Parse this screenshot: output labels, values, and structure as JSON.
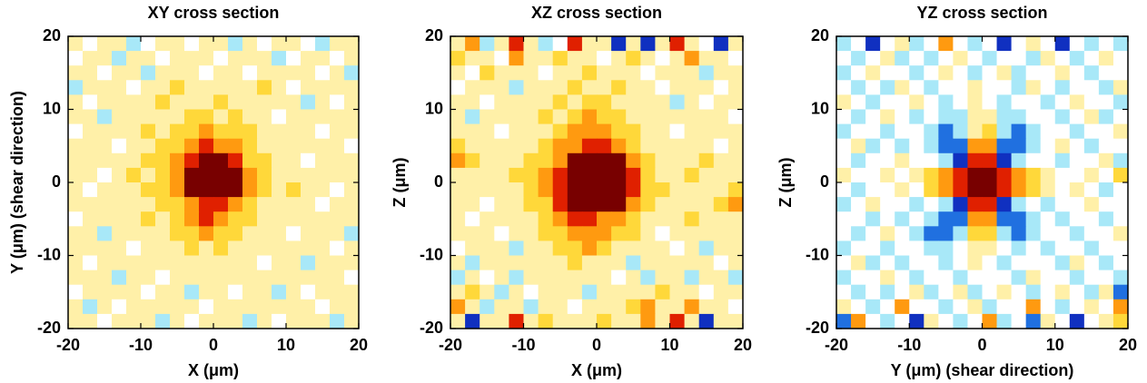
{
  "chart_data": [
    {
      "type": "heatmap",
      "title": "XY cross section",
      "xlabel": "X (μm)",
      "ylabel": "Y (μm) (shear direction)",
      "xlim": [
        -20,
        20
      ],
      "ylim": [
        -20,
        20
      ],
      "xticks": [
        -20,
        -10,
        0,
        10,
        20
      ],
      "yticks": [
        -20,
        -10,
        0,
        10,
        20
      ],
      "zlim": [
        -3,
        5
      ],
      "colormap": [
        "#1030c0",
        "#2070e0",
        "#a8e8f8",
        "#ffffff",
        "#fff0a8",
        "#ffd83a",
        "#ff9a10",
        "#e02000",
        "#780000"
      ],
      "z": [
        [
          1,
          0,
          1,
          1,
          -1,
          0,
          1,
          1,
          0,
          1,
          1,
          -1,
          1,
          0,
          1,
          1,
          0,
          -1,
          1,
          1
        ],
        [
          0,
          1,
          1,
          -1,
          1,
          1,
          0,
          1,
          1,
          1,
          0,
          1,
          1,
          1,
          -1,
          0,
          1,
          1,
          0,
          1
        ],
        [
          1,
          1,
          0,
          1,
          1,
          -1,
          1,
          1,
          1,
          0,
          1,
          1,
          0,
          1,
          1,
          1,
          1,
          0,
          1,
          -1
        ],
        [
          -1,
          1,
          1,
          1,
          0,
          1,
          1,
          2,
          1,
          1,
          1,
          1,
          1,
          2,
          1,
          0,
          1,
          1,
          1,
          1
        ],
        [
          1,
          0,
          1,
          1,
          1,
          1,
          2,
          1,
          1,
          1,
          2,
          1,
          1,
          1,
          1,
          1,
          -1,
          1,
          0,
          1
        ],
        [
          1,
          1,
          -1,
          1,
          1,
          1,
          1,
          1,
          2,
          2,
          1,
          2,
          1,
          1,
          0,
          1,
          1,
          1,
          1,
          1
        ],
        [
          0,
          1,
          1,
          1,
          1,
          2,
          1,
          2,
          2,
          3,
          2,
          2,
          2,
          1,
          1,
          1,
          1,
          0,
          1,
          1
        ],
        [
          1,
          1,
          1,
          0,
          1,
          1,
          2,
          2,
          3,
          4,
          3,
          3,
          2,
          1,
          1,
          1,
          1,
          1,
          1,
          0
        ],
        [
          1,
          1,
          1,
          1,
          1,
          2,
          2,
          3,
          4,
          5,
          5,
          4,
          2,
          2,
          1,
          1,
          0,
          1,
          1,
          1
        ],
        [
          1,
          1,
          0,
          1,
          2,
          1,
          2,
          3,
          5,
          5,
          5,
          5,
          3,
          2,
          1,
          1,
          1,
          1,
          1,
          1
        ],
        [
          1,
          0,
          1,
          1,
          1,
          2,
          2,
          3,
          5,
          5,
          5,
          5,
          3,
          2,
          1,
          2,
          1,
          1,
          0,
          1
        ],
        [
          1,
          1,
          1,
          1,
          1,
          1,
          2,
          2,
          3,
          4,
          4,
          3,
          2,
          1,
          1,
          1,
          1,
          0,
          1,
          1
        ],
        [
          0,
          1,
          1,
          1,
          1,
          2,
          1,
          2,
          3,
          4,
          3,
          2,
          2,
          1,
          1,
          1,
          1,
          1,
          1,
          1
        ],
        [
          1,
          1,
          -1,
          1,
          1,
          1,
          1,
          2,
          2,
          3,
          2,
          2,
          1,
          1,
          1,
          0,
          1,
          1,
          1,
          -1
        ],
        [
          1,
          1,
          1,
          1,
          0,
          1,
          1,
          1,
          2,
          1,
          2,
          1,
          1,
          1,
          1,
          1,
          1,
          1,
          0,
          1
        ],
        [
          1,
          0,
          1,
          1,
          1,
          1,
          1,
          1,
          1,
          1,
          1,
          1,
          1,
          0,
          1,
          1,
          -1,
          1,
          1,
          1
        ],
        [
          1,
          1,
          1,
          -1,
          1,
          1,
          0,
          1,
          1,
          1,
          1,
          1,
          1,
          1,
          1,
          1,
          1,
          1,
          1,
          0
        ],
        [
          0,
          1,
          1,
          1,
          1,
          0,
          1,
          1,
          -1,
          1,
          1,
          0,
          1,
          1,
          -1,
          1,
          0,
          1,
          1,
          1
        ],
        [
          1,
          -1,
          1,
          0,
          1,
          1,
          1,
          1,
          1,
          0,
          1,
          1,
          1,
          1,
          1,
          1,
          1,
          0,
          1,
          1
        ],
        [
          1,
          1,
          0,
          1,
          1,
          1,
          -1,
          1,
          0,
          1,
          1,
          1,
          -1,
          1,
          0,
          1,
          1,
          1,
          -1,
          1
        ]
      ]
    },
    {
      "type": "heatmap",
      "title": "XZ cross section",
      "xlabel": "X (μm)",
      "ylabel": "Z (μm)",
      "xlim": [
        -20,
        20
      ],
      "ylim": [
        -20,
        20
      ],
      "xticks": [
        -20,
        -10,
        0,
        10,
        20
      ],
      "yticks": [
        -20,
        -10,
        0,
        10,
        20
      ],
      "zlim": [
        -3,
        5
      ],
      "colormap": [
        "#1030c0",
        "#2070e0",
        "#a8e8f8",
        "#ffffff",
        "#fff0a8",
        "#ffd83a",
        "#ff9a10",
        "#e02000",
        "#780000"
      ],
      "z": [
        [
          1,
          3,
          -1,
          1,
          4,
          1,
          -1,
          0,
          4,
          1,
          1,
          -3,
          1,
          -3,
          1,
          4,
          1,
          0,
          -3,
          1
        ],
        [
          2,
          1,
          1,
          0,
          3,
          1,
          1,
          2,
          1,
          1,
          0,
          1,
          2,
          1,
          0,
          1,
          3,
          1,
          1,
          0
        ],
        [
          1,
          0,
          2,
          1,
          1,
          1,
          0,
          1,
          1,
          2,
          1,
          1,
          1,
          0,
          1,
          1,
          1,
          -1,
          1,
          1
        ],
        [
          0,
          1,
          1,
          1,
          -1,
          1,
          1,
          1,
          2,
          1,
          1,
          2,
          1,
          1,
          0,
          1,
          1,
          1,
          0,
          1
        ],
        [
          1,
          1,
          0,
          1,
          1,
          1,
          1,
          2,
          1,
          2,
          2,
          1,
          1,
          1,
          1,
          -1,
          1,
          0,
          1,
          1
        ],
        [
          1,
          -1,
          1,
          1,
          1,
          1,
          2,
          1,
          2,
          3,
          2,
          2,
          1,
          1,
          1,
          1,
          1,
          1,
          1,
          0
        ],
        [
          1,
          1,
          1,
          0,
          1,
          1,
          1,
          2,
          3,
          3,
          3,
          2,
          2,
          1,
          1,
          0,
          1,
          1,
          1,
          1
        ],
        [
          2,
          1,
          1,
          1,
          1,
          1,
          2,
          3,
          3,
          4,
          4,
          3,
          2,
          1,
          1,
          1,
          1,
          1,
          0,
          1
        ],
        [
          3,
          2,
          1,
          1,
          1,
          2,
          2,
          3,
          5,
          5,
          5,
          5,
          3,
          2,
          1,
          1,
          1,
          2,
          1,
          1
        ],
        [
          1,
          1,
          1,
          1,
          2,
          2,
          3,
          4,
          5,
          5,
          5,
          5,
          4,
          2,
          1,
          1,
          2,
          1,
          1,
          1
        ],
        [
          1,
          1,
          1,
          1,
          1,
          2,
          3,
          4,
          5,
          5,
          5,
          5,
          4,
          2,
          2,
          1,
          1,
          1,
          1,
          2
        ],
        [
          1,
          1,
          0,
          1,
          1,
          2,
          2,
          4,
          5,
          5,
          5,
          5,
          3,
          2,
          1,
          1,
          1,
          1,
          2,
          3
        ],
        [
          1,
          0,
          1,
          1,
          1,
          1,
          2,
          3,
          4,
          4,
          3,
          3,
          2,
          1,
          1,
          1,
          2,
          1,
          1,
          1
        ],
        [
          1,
          1,
          1,
          0,
          1,
          1,
          2,
          2,
          3,
          3,
          3,
          2,
          2,
          1,
          0,
          1,
          1,
          1,
          1,
          1
        ],
        [
          0,
          1,
          1,
          1,
          -1,
          1,
          1,
          2,
          2,
          3,
          2,
          1,
          1,
          1,
          1,
          0,
          1,
          -1,
          1,
          1
        ],
        [
          1,
          -1,
          1,
          1,
          1,
          1,
          1,
          1,
          2,
          1,
          1,
          1,
          -1,
          1,
          1,
          1,
          1,
          1,
          0,
          1
        ],
        [
          -1,
          1,
          0,
          1,
          -1,
          1,
          1,
          1,
          1,
          1,
          1,
          0,
          1,
          -1,
          1,
          1,
          -1,
          1,
          1,
          -1
        ],
        [
          1,
          2,
          1,
          -1,
          1,
          0,
          1,
          1,
          1,
          -1,
          1,
          1,
          1,
          1,
          2,
          1,
          1,
          0,
          1,
          1
        ],
        [
          3,
          1,
          -1,
          1,
          1,
          -1,
          1,
          1,
          0,
          1,
          1,
          1,
          2,
          3,
          1,
          1,
          3,
          1,
          1,
          0
        ],
        [
          1,
          -3,
          1,
          1,
          4,
          1,
          2,
          1,
          1,
          1,
          2,
          1,
          1,
          3,
          1,
          4,
          1,
          -3,
          1,
          1
        ]
      ]
    },
    {
      "type": "heatmap",
      "title": "YZ cross section",
      "xlabel": "Y (μm) (shear direction)",
      "ylabel": "Z (μm)",
      "xlim": [
        -20,
        20
      ],
      "ylim": [
        -20,
        20
      ],
      "xticks": [
        -20,
        -10,
        0,
        10,
        20
      ],
      "yticks": [
        -20,
        -10,
        0,
        10,
        20
      ],
      "zlim": [
        -3,
        5
      ],
      "colormap": [
        "#1030c0",
        "#2070e0",
        "#a8e8f8",
        "#ffffff",
        "#fff0a8",
        "#ffd83a",
        "#ff9a10",
        "#e02000",
        "#780000"
      ],
      "z": [
        [
          -1,
          0,
          -3,
          0,
          1,
          -1,
          0,
          3,
          0,
          -1,
          0,
          -3,
          0,
          1,
          0,
          -3,
          0,
          -1,
          0,
          -1
        ],
        [
          0,
          -1,
          0,
          1,
          -1,
          0,
          -1,
          0,
          1,
          0,
          -1,
          0,
          0,
          -1,
          1,
          0,
          -1,
          0,
          1,
          0
        ],
        [
          -1,
          0,
          1,
          0,
          0,
          -1,
          0,
          1,
          0,
          -1,
          0,
          1,
          -1,
          0,
          0,
          1,
          0,
          -1,
          0,
          0
        ],
        [
          0,
          -1,
          0,
          -1,
          1,
          0,
          -1,
          0,
          0,
          1,
          0,
          0,
          -1,
          1,
          0,
          -1,
          0,
          0,
          -1,
          1
        ],
        [
          1,
          0,
          -1,
          0,
          0,
          1,
          0,
          -1,
          0,
          1,
          0,
          -1,
          0,
          0,
          -1,
          0,
          1,
          0,
          0,
          -1
        ],
        [
          0,
          -1,
          0,
          1,
          0,
          -1,
          0,
          -1,
          -1,
          1,
          1,
          -1,
          -1,
          0,
          0,
          -1,
          0,
          1,
          -1,
          0
        ],
        [
          -1,
          0,
          0,
          -1,
          0,
          0,
          -1,
          -2,
          -1,
          1,
          2,
          -1,
          -2,
          -1,
          0,
          0,
          -1,
          0,
          0,
          1
        ],
        [
          0,
          1,
          -1,
          0,
          -1,
          0,
          -1,
          -2,
          -2,
          3,
          3,
          -2,
          -2,
          -1,
          0,
          1,
          0,
          -1,
          0,
          0
        ],
        [
          0,
          -1,
          0,
          0,
          1,
          0,
          0,
          -1,
          -3,
          4,
          4,
          -3,
          -1,
          0,
          0,
          -1,
          0,
          0,
          1,
          -1
        ],
        [
          1,
          0,
          0,
          1,
          0,
          1,
          2,
          3,
          4,
          5,
          5,
          4,
          3,
          2,
          1,
          0,
          0,
          1,
          0,
          2
        ],
        [
          0,
          -1,
          0,
          0,
          1,
          0,
          2,
          3,
          4,
          5,
          5,
          4,
          3,
          2,
          1,
          0,
          1,
          0,
          -1,
          0
        ],
        [
          -1,
          0,
          1,
          0,
          0,
          -1,
          0,
          -1,
          -3,
          4,
          4,
          -3,
          -1,
          0,
          -1,
          0,
          0,
          1,
          0,
          0
        ],
        [
          0,
          0,
          -1,
          0,
          -1,
          0,
          -1,
          -2,
          -2,
          3,
          3,
          -2,
          -2,
          -1,
          0,
          -1,
          0,
          0,
          -1,
          0
        ],
        [
          0,
          -1,
          0,
          1,
          0,
          -1,
          -2,
          -2,
          -1,
          2,
          2,
          -1,
          -2,
          -1,
          0,
          0,
          -1,
          0,
          0,
          1
        ],
        [
          -1,
          0,
          0,
          -1,
          0,
          0,
          -1,
          -1,
          0,
          1,
          1,
          0,
          -1,
          0,
          -1,
          0,
          0,
          -1,
          0,
          0
        ],
        [
          0,
          1,
          -1,
          0,
          -1,
          0,
          0,
          -1,
          0,
          1,
          0,
          -1,
          0,
          0,
          0,
          -1,
          1,
          0,
          -1,
          0
        ],
        [
          -1,
          0,
          0,
          1,
          0,
          -1,
          0,
          0,
          -1,
          0,
          0,
          0,
          -1,
          1,
          0,
          0,
          -1,
          0,
          0,
          -1
        ],
        [
          0,
          -1,
          0,
          -1,
          0,
          1,
          -1,
          0,
          1,
          -1,
          0,
          1,
          0,
          -1,
          0,
          1,
          0,
          -1,
          1,
          -2
        ],
        [
          1,
          0,
          -1,
          0,
          3,
          0,
          0,
          -1,
          0,
          1,
          -1,
          0,
          0,
          3,
          0,
          -1,
          0,
          1,
          0,
          3
        ],
        [
          -2,
          3,
          0,
          -1,
          0,
          -3,
          1,
          0,
          -1,
          0,
          3,
          -1,
          0,
          -2,
          1,
          0,
          -3,
          0,
          1,
          2
        ]
      ]
    }
  ]
}
